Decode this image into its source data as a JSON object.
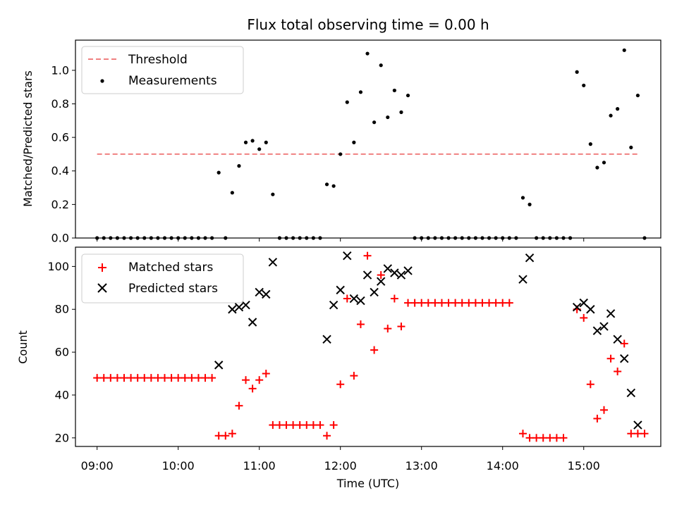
{
  "title": "Flux total observing time = 0.00 h",
  "xlabel": "Time (UTC)",
  "x_ticks": [
    "09:00",
    "10:00",
    "11:00",
    "12:00",
    "13:00",
    "14:00",
    "15:00"
  ],
  "colors": {
    "threshold": "#f08080",
    "measurements": "#000000",
    "matched": "#ff0000",
    "predicted": "#000000"
  },
  "chart_data": [
    {
      "type": "scatter",
      "ylabel": "Matched/Predicted stars",
      "ylim": [
        0,
        1.18
      ],
      "xlim": [
        "08:44",
        "15:57"
      ],
      "x_unit": "time (UTC)",
      "yticks": [
        0.0,
        0.2,
        0.4,
        0.6,
        0.8,
        1.0
      ],
      "legend": "top-left",
      "threshold": {
        "name": "Threshold",
        "y": 0.5,
        "x_range": [
          "09:00",
          "15:40"
        ],
        "style": "dashed"
      },
      "series": [
        {
          "name": "Measurements",
          "marker": "dot",
          "points": [
            [
              "09:00",
              0
            ],
            [
              "09:05",
              0
            ],
            [
              "09:10",
              0
            ],
            [
              "09:15",
              0
            ],
            [
              "09:20",
              0
            ],
            [
              "09:25",
              0
            ],
            [
              "09:30",
              0
            ],
            [
              "09:35",
              0
            ],
            [
              "09:40",
              0
            ],
            [
              "09:45",
              0
            ],
            [
              "09:50",
              0
            ],
            [
              "09:55",
              0
            ],
            [
              "10:00",
              0
            ],
            [
              "10:05",
              0
            ],
            [
              "10:10",
              0
            ],
            [
              "10:15",
              0
            ],
            [
              "10:20",
              0
            ],
            [
              "10:25",
              0
            ],
            [
              "10:30",
              0.39
            ],
            [
              "10:35",
              0
            ],
            [
              "10:40",
              0.27
            ],
            [
              "10:45",
              0.43
            ],
            [
              "10:50",
              0.57
            ],
            [
              "10:55",
              0.58
            ],
            [
              "11:00",
              0.53
            ],
            [
              "11:05",
              0.57
            ],
            [
              "11:10",
              0.26
            ],
            [
              "11:15",
              0
            ],
            [
              "11:20",
              0
            ],
            [
              "11:25",
              0
            ],
            [
              "11:30",
              0
            ],
            [
              "11:35",
              0
            ],
            [
              "11:40",
              0
            ],
            [
              "11:45",
              0
            ],
            [
              "11:50",
              0.32
            ],
            [
              "11:55",
              0.31
            ],
            [
              "12:00",
              0.5
            ],
            [
              "12:05",
              0.81
            ],
            [
              "12:10",
              0.57
            ],
            [
              "12:15",
              0.87
            ],
            [
              "12:20",
              1.1
            ],
            [
              "12:25",
              0.69
            ],
            [
              "12:30",
              1.03
            ],
            [
              "12:35",
              0.72
            ],
            [
              "12:40",
              0.88
            ],
            [
              "12:45",
              0.75
            ],
            [
              "12:50",
              0.85
            ],
            [
              "12:55",
              0
            ],
            [
              "13:00",
              0
            ],
            [
              "13:05",
              0
            ],
            [
              "13:10",
              0
            ],
            [
              "13:15",
              0
            ],
            [
              "13:20",
              0
            ],
            [
              "13:25",
              0
            ],
            [
              "13:30",
              0
            ],
            [
              "13:35",
              0
            ],
            [
              "13:40",
              0
            ],
            [
              "13:45",
              0
            ],
            [
              "13:50",
              0
            ],
            [
              "13:55",
              0
            ],
            [
              "14:00",
              0
            ],
            [
              "14:05",
              0
            ],
            [
              "14:10",
              0
            ],
            [
              "14:15",
              0.24
            ],
            [
              "14:20",
              0.2
            ],
            [
              "14:25",
              0
            ],
            [
              "14:30",
              0
            ],
            [
              "14:35",
              0
            ],
            [
              "14:40",
              0
            ],
            [
              "14:45",
              0
            ],
            [
              "14:50",
              0
            ],
            [
              "14:55",
              0.99
            ],
            [
              "15:00",
              0.91
            ],
            [
              "15:05",
              0.56
            ],
            [
              "15:10",
              0.42
            ],
            [
              "15:15",
              0.45
            ],
            [
              "15:20",
              0.73
            ],
            [
              "15:25",
              0.77
            ],
            [
              "15:30",
              1.12
            ],
            [
              "15:35",
              0.54
            ],
            [
              "15:40",
              0.85
            ],
            [
              "15:45",
              0
            ]
          ]
        }
      ]
    },
    {
      "type": "scatter",
      "ylabel": "Count",
      "ylim": [
        16,
        109
      ],
      "xlim": [
        "08:44",
        "15:57"
      ],
      "x_unit": "time (UTC)",
      "yticks": [
        20,
        40,
        60,
        80,
        100
      ],
      "legend": "top-left",
      "series": [
        {
          "name": "Matched stars",
          "marker": "plus",
          "points": [
            [
              "09:00",
              48
            ],
            [
              "09:05",
              48
            ],
            [
              "09:10",
              48
            ],
            [
              "09:15",
              48
            ],
            [
              "09:20",
              48
            ],
            [
              "09:25",
              48
            ],
            [
              "09:30",
              48
            ],
            [
              "09:35",
              48
            ],
            [
              "09:40",
              48
            ],
            [
              "09:45",
              48
            ],
            [
              "09:50",
              48
            ],
            [
              "09:55",
              48
            ],
            [
              "10:00",
              48
            ],
            [
              "10:05",
              48
            ],
            [
              "10:10",
              48
            ],
            [
              "10:15",
              48
            ],
            [
              "10:20",
              48
            ],
            [
              "10:25",
              48
            ],
            [
              "10:30",
              21
            ],
            [
              "10:35",
              21
            ],
            [
              "10:40",
              22
            ],
            [
              "10:45",
              35
            ],
            [
              "10:50",
              47
            ],
            [
              "10:55",
              43
            ],
            [
              "11:00",
              47
            ],
            [
              "11:05",
              50
            ],
            [
              "11:10",
              26
            ],
            [
              "11:15",
              26
            ],
            [
              "11:20",
              26
            ],
            [
              "11:25",
              26
            ],
            [
              "11:30",
              26
            ],
            [
              "11:35",
              26
            ],
            [
              "11:40",
              26
            ],
            [
              "11:45",
              26
            ],
            [
              "11:50",
              21
            ],
            [
              "11:55",
              26
            ],
            [
              "12:00",
              45
            ],
            [
              "12:05",
              85
            ],
            [
              "12:10",
              49
            ],
            [
              "12:15",
              73
            ],
            [
              "12:20",
              105
            ],
            [
              "12:25",
              61
            ],
            [
              "12:30",
              96
            ],
            [
              "12:35",
              71
            ],
            [
              "12:40",
              85
            ],
            [
              "12:45",
              72
            ],
            [
              "12:50",
              83
            ],
            [
              "12:55",
              83
            ],
            [
              "13:00",
              83
            ],
            [
              "13:05",
              83
            ],
            [
              "13:10",
              83
            ],
            [
              "13:15",
              83
            ],
            [
              "13:20",
              83
            ],
            [
              "13:25",
              83
            ],
            [
              "13:30",
              83
            ],
            [
              "13:35",
              83
            ],
            [
              "13:40",
              83
            ],
            [
              "13:45",
              83
            ],
            [
              "13:50",
              83
            ],
            [
              "13:55",
              83
            ],
            [
              "14:00",
              83
            ],
            [
              "14:05",
              83
            ],
            [
              "14:15",
              22
            ],
            [
              "14:20",
              20
            ],
            [
              "14:25",
              20
            ],
            [
              "14:30",
              20
            ],
            [
              "14:35",
              20
            ],
            [
              "14:40",
              20
            ],
            [
              "14:45",
              20
            ],
            [
              "14:55",
              80
            ],
            [
              "15:00",
              76
            ],
            [
              "15:05",
              45
            ],
            [
              "15:10",
              29
            ],
            [
              "15:15",
              33
            ],
            [
              "15:20",
              57
            ],
            [
              "15:25",
              51
            ],
            [
              "15:30",
              64
            ],
            [
              "15:35",
              22
            ],
            [
              "15:40",
              22
            ],
            [
              "15:45",
              22
            ]
          ]
        },
        {
          "name": "Predicted stars",
          "marker": "x",
          "points": [
            [
              "10:30",
              54
            ],
            [
              "10:40",
              80
            ],
            [
              "10:45",
              81
            ],
            [
              "10:50",
              82
            ],
            [
              "10:55",
              74
            ],
            [
              "11:00",
              88
            ],
            [
              "11:05",
              87
            ],
            [
              "11:10",
              102
            ],
            [
              "11:50",
              66
            ],
            [
              "11:55",
              82
            ],
            [
              "12:00",
              89
            ],
            [
              "12:05",
              105
            ],
            [
              "12:10",
              85
            ],
            [
              "12:15",
              84
            ],
            [
              "12:20",
              96
            ],
            [
              "12:25",
              88
            ],
            [
              "12:30",
              93
            ],
            [
              "12:35",
              99
            ],
            [
              "12:40",
              97
            ],
            [
              "12:45",
              96
            ],
            [
              "12:50",
              98
            ],
            [
              "14:15",
              94
            ],
            [
              "14:20",
              104
            ],
            [
              "14:55",
              81
            ],
            [
              "15:00",
              83
            ],
            [
              "15:05",
              80
            ],
            [
              "15:10",
              70
            ],
            [
              "15:15",
              72
            ],
            [
              "15:20",
              78
            ],
            [
              "15:25",
              66
            ],
            [
              "15:30",
              57
            ],
            [
              "15:35",
              41
            ],
            [
              "15:40",
              26
            ]
          ]
        }
      ]
    }
  ]
}
